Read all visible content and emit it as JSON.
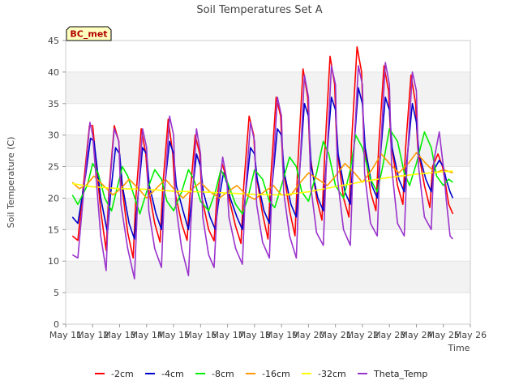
{
  "chart_data": {
    "type": "line",
    "title": "Soil Temperatures Set A",
    "xlabel": "Time",
    "ylabel": "Soil Temperature (C)",
    "ylim": [
      0,
      45
    ],
    "yticks": [
      0,
      5,
      10,
      15,
      20,
      25,
      30,
      35,
      40,
      45
    ],
    "xlim": [
      11,
      26
    ],
    "xtick_values": [
      11,
      12,
      13,
      14,
      15,
      16,
      17,
      18,
      19,
      20,
      21,
      22,
      23,
      24,
      25,
      26
    ],
    "xtick_labels": [
      "May 11",
      "May 12",
      "May 13",
      "May 14",
      "May 15",
      "May 16",
      "May 17",
      "May 18",
      "May 19",
      "May 20",
      "May 21",
      "May 22",
      "May 23",
      "May 24",
      "May 25",
      "May 26"
    ],
    "x_unit": "day of May",
    "grid": "horizontal bands",
    "legend_position": "bottom",
    "badge": "BC_met",
    "series": [
      {
        "name": "-2cm",
        "color": "#ff0000",
        "x": [
          11.25,
          11.45,
          11.75,
          11.88,
          12.0,
          12.3,
          12.5,
          12.6,
          12.8,
          12.97,
          13.05,
          13.3,
          13.5,
          13.6,
          13.8,
          13.97,
          14.05,
          14.3,
          14.5,
          14.6,
          14.8,
          14.97,
          15.05,
          15.3,
          15.5,
          15.6,
          15.8,
          15.97,
          16.05,
          16.3,
          16.5,
          16.6,
          16.8,
          16.97,
          17.05,
          17.3,
          17.5,
          17.6,
          17.8,
          17.97,
          18.05,
          18.3,
          18.5,
          18.6,
          18.8,
          18.97,
          19.05,
          19.3,
          19.5,
          19.6,
          19.8,
          19.97,
          20.05,
          20.3,
          20.5,
          20.6,
          20.8,
          20.97,
          21.05,
          21.3,
          21.5,
          21.6,
          21.8,
          21.97,
          22.05,
          22.3,
          22.5,
          22.6,
          22.8,
          22.97,
          23.05,
          23.3,
          23.5,
          23.6,
          23.8,
          23.97,
          24.05,
          24.3,
          24.5,
          24.6,
          24.8,
          24.97,
          25.05,
          25.2,
          25.35
        ],
        "y": [
          14,
          13.3,
          26,
          31.5,
          31.5,
          18,
          11.7,
          21,
          31.5,
          29,
          23,
          14.5,
          10.5,
          20,
          31,
          27,
          22,
          16,
          13,
          22,
          32.5,
          27,
          21,
          16,
          13.3,
          20,
          30,
          27,
          20,
          15,
          13.2,
          20,
          25.5,
          23,
          20,
          15.5,
          12.8,
          22,
          33,
          30,
          24,
          17.5,
          13.5,
          23,
          36,
          33,
          25,
          18,
          14,
          25,
          40.5,
          36,
          27,
          20,
          16.5,
          27,
          42.5,
          38,
          28,
          20,
          17,
          29,
          44,
          40,
          29,
          21,
          18,
          28,
          41,
          37,
          29,
          22,
          19,
          28,
          39.5,
          35,
          28,
          22,
          18.5,
          25,
          27,
          25,
          23,
          19,
          17.5
        ]
      },
      {
        "name": "-4cm",
        "color": "#0000cc",
        "x": [
          11.25,
          11.45,
          11.75,
          11.92,
          12.05,
          12.3,
          12.55,
          12.65,
          12.85,
          13.0,
          13.1,
          13.35,
          13.55,
          13.65,
          13.85,
          14.0,
          14.1,
          14.35,
          14.55,
          14.65,
          14.85,
          15.0,
          15.1,
          15.35,
          15.55,
          15.65,
          15.85,
          16.0,
          16.1,
          16.35,
          16.55,
          16.65,
          16.85,
          17.0,
          17.1,
          17.35,
          17.55,
          17.65,
          17.85,
          18.0,
          18.1,
          18.35,
          18.55,
          18.65,
          18.85,
          19.0,
          19.1,
          19.35,
          19.55,
          19.65,
          19.85,
          20.0,
          20.1,
          20.35,
          20.55,
          20.65,
          20.85,
          21.0,
          21.1,
          21.35,
          21.55,
          21.65,
          21.85,
          22.0,
          22.1,
          22.35,
          22.55,
          22.65,
          22.85,
          23.0,
          23.1,
          23.35,
          23.55,
          23.65,
          23.85,
          24.0,
          24.1,
          24.35,
          24.55,
          24.65,
          24.85,
          25.0,
          25.1,
          25.25,
          25.35
        ],
        "y": [
          17,
          16,
          24,
          29.5,
          29,
          20,
          14.5,
          20,
          28,
          27,
          22,
          16,
          13.5,
          19,
          28,
          27,
          22,
          17.5,
          15,
          21,
          29,
          27,
          22,
          18,
          15,
          19,
          27,
          25,
          21,
          17,
          15,
          19,
          24,
          22,
          20,
          17,
          15,
          20,
          28,
          27,
          23,
          18,
          16,
          22,
          31,
          30,
          24,
          19,
          17,
          23,
          35,
          33,
          25,
          20,
          18,
          25,
          36,
          34,
          27,
          21,
          19,
          26,
          37.5,
          35,
          28,
          22,
          20,
          26,
          36,
          34,
          28,
          23,
          21,
          26,
          35,
          32,
          27,
          23,
          21,
          24.5,
          26,
          25,
          23,
          21,
          20
        ]
      },
      {
        "name": "-8cm",
        "color": "#00ee00",
        "x": [
          11.25,
          11.45,
          11.8,
          12.0,
          12.2,
          12.45,
          12.7,
          12.9,
          13.1,
          13.3,
          13.6,
          13.75,
          14.0,
          14.3,
          14.55,
          14.75,
          15.0,
          15.3,
          15.55,
          15.75,
          16.0,
          16.3,
          16.55,
          16.75,
          17.0,
          17.3,
          17.55,
          17.75,
          18.0,
          18.3,
          18.55,
          18.75,
          19.0,
          19.3,
          19.55,
          19.75,
          20.0,
          20.3,
          20.55,
          20.75,
          21.0,
          21.3,
          21.55,
          21.75,
          22.0,
          22.3,
          22.55,
          22.75,
          23.0,
          23.3,
          23.55,
          23.75,
          24.0,
          24.3,
          24.55,
          24.75,
          25.0,
          25.2,
          25.35
        ],
        "y": [
          20.5,
          19,
          22,
          25.5,
          24,
          20,
          18,
          21.5,
          25,
          23.5,
          19.5,
          17.5,
          21,
          24.5,
          23,
          19.5,
          18,
          21,
          24.5,
          23,
          19.5,
          18,
          21,
          24.5,
          22.5,
          19,
          17.5,
          20,
          24.5,
          23,
          19.5,
          18.5,
          22,
          26.5,
          25,
          21,
          19.5,
          24,
          29,
          27,
          22,
          20,
          24.5,
          30,
          28,
          23,
          21,
          25,
          31,
          29,
          24,
          22,
          25.5,
          30.5,
          28,
          23.5,
          22,
          23,
          22.5
        ]
      },
      {
        "name": "-16cm",
        "color": "#ff9900",
        "x": [
          11.25,
          11.5,
          11.75,
          12.05,
          12.4,
          12.75,
          13.05,
          13.35,
          13.7,
          14.0,
          14.35,
          14.7,
          15.0,
          15.35,
          15.7,
          16.0,
          16.35,
          16.7,
          17.0,
          17.35,
          17.7,
          18.0,
          18.35,
          18.7,
          19.0,
          19.35,
          19.7,
          20.0,
          20.35,
          20.7,
          21.0,
          21.35,
          21.7,
          22.0,
          22.35,
          22.7,
          23.0,
          23.35,
          23.7,
          24.0,
          24.35,
          24.7,
          25.0,
          25.35
        ],
        "y": [
          22.5,
          21.5,
          22,
          23.5,
          22,
          20.5,
          21.5,
          23,
          21.5,
          20,
          21.5,
          23,
          21.5,
          20,
          21.5,
          22.5,
          21,
          20,
          21,
          22,
          20.5,
          19.8,
          21,
          22,
          20.5,
          20.5,
          22.5,
          24,
          23,
          22,
          23.5,
          25.5,
          24,
          22.5,
          24.5,
          27,
          25.5,
          24,
          25.5,
          27.2,
          25.5,
          24,
          24.5,
          24
        ]
      },
      {
        "name": "-32cm",
        "color": "#ffff00",
        "x": [
          11.25,
          12.0,
          13.0,
          14.0,
          15.0,
          16.0,
          17.0,
          18.0,
          19.0,
          20.0,
          21.0,
          22.0,
          23.0,
          24.0,
          25.0,
          25.35
        ],
        "y": [
          22.3,
          21.8,
          21.5,
          21.4,
          21.1,
          21.0,
          20.8,
          20.6,
          20.5,
          21.0,
          21.8,
          22.6,
          23.3,
          23.8,
          24.2,
          24.3
        ]
      },
      {
        "name": "Theta_Temp",
        "color": "#9933cc",
        "x": [
          11.25,
          11.45,
          11.75,
          11.9,
          12.0,
          12.3,
          12.5,
          12.6,
          12.8,
          12.97,
          13.05,
          13.3,
          13.55,
          13.65,
          13.85,
          14.0,
          14.08,
          14.3,
          14.55,
          14.65,
          14.85,
          15.0,
          15.08,
          15.3,
          15.55,
          15.65,
          15.85,
          16.0,
          16.08,
          16.3,
          16.5,
          16.62,
          16.82,
          16.97,
          17.05,
          17.3,
          17.55,
          17.65,
          17.85,
          18.0,
          18.08,
          18.3,
          18.55,
          18.65,
          18.85,
          19.0,
          19.08,
          19.3,
          19.55,
          19.65,
          19.85,
          20.0,
          20.08,
          20.3,
          20.55,
          20.65,
          20.85,
          21.0,
          21.08,
          21.3,
          21.55,
          21.65,
          21.85,
          22.0,
          22.08,
          22.3,
          22.55,
          22.65,
          22.85,
          23.0,
          23.08,
          23.3,
          23.55,
          23.65,
          23.85,
          24.0,
          24.08,
          24.3,
          24.55,
          24.65,
          24.85,
          25.0,
          25.1,
          25.25,
          25.35
        ],
        "y": [
          11,
          10.5,
          25,
          32,
          30,
          14,
          8.5,
          20,
          31,
          29,
          19,
          12,
          7.2,
          18,
          31,
          28,
          18,
          12,
          9,
          20,
          33,
          30,
          19,
          12,
          7.7,
          17,
          31,
          27,
          17,
          11,
          9,
          19,
          26.5,
          23,
          17,
          12,
          9.5,
          20,
          32,
          29,
          19,
          13,
          10.5,
          22,
          36,
          33,
          21,
          14,
          10.5,
          22,
          39.5,
          36,
          22,
          14.5,
          12.5,
          24,
          41,
          38,
          23,
          15,
          12.5,
          25,
          41,
          38,
          24,
          16,
          14,
          26,
          41.5,
          38,
          25,
          16,
          14,
          25,
          40,
          37,
          25,
          17,
          15,
          26,
          30.5,
          25,
          20,
          14,
          13.5
        ]
      }
    ]
  }
}
